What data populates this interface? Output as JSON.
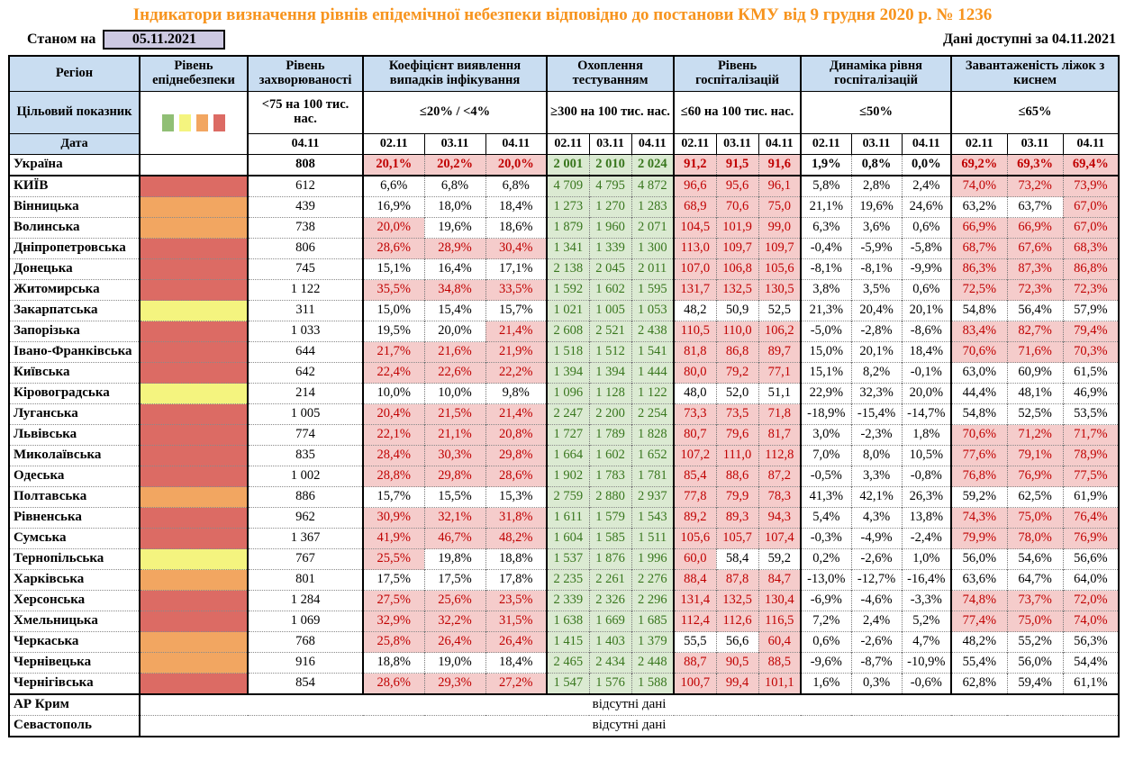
{
  "meta": {
    "title": "Індикатори визначення рівнів епідемічної небезпеки відповідно до постанови КМУ від 9 грудня 2020 р. № 1236",
    "as_of_label": "Станом на",
    "as_of_date": "05.11.2021",
    "available_label": "Дані доступні за",
    "available_date": "04.11.2021"
  },
  "colors": {
    "title_orange": "#f7941e",
    "header_blue": "#c9ddf1",
    "date_box_lavender": "#cdc9e2",
    "alert_bg_pink": "#f5cccb",
    "alert_text_red": "#c00000",
    "testing_bg_green": "#dbead2",
    "testing_text_green": "#38761d",
    "level_red": "#dc6b64",
    "level_orange": "#f2a661",
    "level_yellow": "#f4f47f",
    "legend_green": "#90bf75"
  },
  "legend": {
    "colors": [
      "#90bf75",
      "#f4f47f",
      "#f2a661",
      "#dc6b64"
    ]
  },
  "header": {
    "region_label": "Регіон",
    "target_label": "Цільовий показник",
    "date_label": "Дата",
    "groups": [
      {
        "title": "Рівень епіднебезпеки",
        "target": "",
        "dates": []
      },
      {
        "title": "Рівень захворюваності",
        "target": "<75 на 100 тис. нас.",
        "dates": [
          "04.11"
        ]
      },
      {
        "title": "Коефіцієнт виявлення випадків інфікування",
        "target": "≤20% / <4%",
        "dates": [
          "02.11",
          "03.11",
          "04.11"
        ]
      },
      {
        "title": "Охоплення тестуванням",
        "target": "≥300 на 100 тис. нас.",
        "dates": [
          "02.11",
          "03.11",
          "04.11"
        ]
      },
      {
        "title": "Рівень госпіталізацій",
        "target": "≤60 на 100 тис. нас.",
        "dates": [
          "02.11",
          "03.11",
          "04.11"
        ]
      },
      {
        "title": "Динаміка рівня госпіталізацій",
        "target": "≤50%",
        "dates": [
          "02.11",
          "03.11",
          "04.11"
        ]
      },
      {
        "title": "Завантаженість ліжок з киснем",
        "target": "≤65%",
        "dates": [
          "02.11",
          "03.11",
          "04.11"
        ]
      }
    ]
  },
  "rows": [
    {
      "n": "Україна",
      "lv": "none",
      "b": true,
      "inc": "808",
      "det": [
        "20,1%",
        "20,2%",
        "20,0%"
      ],
      "df": "aaa",
      "test": [
        "2 001",
        "2 010",
        "2 024"
      ],
      "hosp": [
        "91,2",
        "91,5",
        "91,6"
      ],
      "hf": "aaa",
      "dyn": [
        "1,9%",
        "0,8%",
        "0,0%"
      ],
      "beds": [
        "69,2%",
        "69,3%",
        "69,4%"
      ],
      "bf": "aaa",
      "sep": false
    },
    {
      "n": "КИЇВ",
      "lv": "red",
      "inc": "612",
      "det": [
        "6,6%",
        "6,8%",
        "6,8%"
      ],
      "df": "nnn",
      "test": [
        "4 709",
        "4 795",
        "4 872"
      ],
      "hosp": [
        "96,6",
        "95,6",
        "96,1"
      ],
      "hf": "aaa",
      "dyn": [
        "5,8%",
        "2,8%",
        "2,4%"
      ],
      "beds": [
        "74,0%",
        "73,2%",
        "73,9%"
      ],
      "bf": "aaa",
      "sep": true
    },
    {
      "n": "Вінницька",
      "lv": "orange",
      "inc": "439",
      "det": [
        "16,9%",
        "18,0%",
        "18,4%"
      ],
      "df": "nnn",
      "test": [
        "1 273",
        "1 270",
        "1 283"
      ],
      "hosp": [
        "68,9",
        "70,6",
        "75,0"
      ],
      "hf": "aaa",
      "dyn": [
        "21,1%",
        "19,6%",
        "24,6%"
      ],
      "beds": [
        "63,2%",
        "63,7%",
        "67,0%"
      ],
      "bf": "nna",
      "sep": false
    },
    {
      "n": "Волинська",
      "lv": "orange",
      "inc": "738",
      "det": [
        "20,0%",
        "19,6%",
        "18,6%"
      ],
      "df": "ann",
      "test": [
        "1 879",
        "1 960",
        "2 071"
      ],
      "hosp": [
        "104,5",
        "101,9",
        "99,0"
      ],
      "hf": "aaa",
      "dyn": [
        "6,3%",
        "3,6%",
        "0,6%"
      ],
      "beds": [
        "66,9%",
        "66,9%",
        "67,0%"
      ],
      "bf": "aaa",
      "sep": false
    },
    {
      "n": "Дніпропетровська",
      "lv": "red",
      "inc": "806",
      "det": [
        "28,6%",
        "28,9%",
        "30,4%"
      ],
      "df": "aaa",
      "test": [
        "1 341",
        "1 339",
        "1 300"
      ],
      "hosp": [
        "113,0",
        "109,7",
        "109,7"
      ],
      "hf": "aaa",
      "dyn": [
        "-0,4%",
        "-5,9%",
        "-5,8%"
      ],
      "beds": [
        "68,7%",
        "67,6%",
        "68,3%"
      ],
      "bf": "aaa",
      "sep": false
    },
    {
      "n": "Донецька",
      "lv": "red",
      "inc": "745",
      "det": [
        "15,1%",
        "16,4%",
        "17,1%"
      ],
      "df": "nnn",
      "test": [
        "2 138",
        "2 045",
        "2 011"
      ],
      "hosp": [
        "107,0",
        "106,8",
        "105,6"
      ],
      "hf": "aaa",
      "dyn": [
        "-8,1%",
        "-8,1%",
        "-9,9%"
      ],
      "beds": [
        "86,3%",
        "87,3%",
        "86,8%"
      ],
      "bf": "aaa",
      "sep": false
    },
    {
      "n": "Житомирська",
      "lv": "red",
      "inc": "1 122",
      "det": [
        "35,5%",
        "34,8%",
        "33,5%"
      ],
      "df": "aaa",
      "test": [
        "1 592",
        "1 602",
        "1 595"
      ],
      "hosp": [
        "131,7",
        "132,5",
        "130,5"
      ],
      "hf": "aaa",
      "dyn": [
        "3,8%",
        "3,5%",
        "0,6%"
      ],
      "beds": [
        "72,5%",
        "72,3%",
        "72,3%"
      ],
      "bf": "aaa",
      "sep": false
    },
    {
      "n": "Закарпатська",
      "lv": "yellow",
      "inc": "311",
      "det": [
        "15,0%",
        "15,4%",
        "15,7%"
      ],
      "df": "nnn",
      "test": [
        "1 021",
        "1 005",
        "1 053"
      ],
      "hosp": [
        "48,2",
        "50,9",
        "52,5"
      ],
      "hf": "nnn",
      "dyn": [
        "21,3%",
        "20,4%",
        "20,1%"
      ],
      "beds": [
        "54,8%",
        "56,4%",
        "57,9%"
      ],
      "bf": "nnn",
      "sep": false
    },
    {
      "n": "Запорізька",
      "lv": "red",
      "inc": "1 033",
      "det": [
        "19,5%",
        "20,0%",
        "21,4%"
      ],
      "df": "nna",
      "test": [
        "2 608",
        "2 521",
        "2 438"
      ],
      "hosp": [
        "110,5",
        "110,0",
        "106,2"
      ],
      "hf": "aaa",
      "dyn": [
        "-5,0%",
        "-2,8%",
        "-8,6%"
      ],
      "beds": [
        "83,4%",
        "82,7%",
        "79,4%"
      ],
      "bf": "aaa",
      "sep": false
    },
    {
      "n": "Івано-Франківська",
      "lv": "red",
      "inc": "644",
      "det": [
        "21,7%",
        "21,6%",
        "21,9%"
      ],
      "df": "aaa",
      "test": [
        "1 518",
        "1 512",
        "1 541"
      ],
      "hosp": [
        "81,8",
        "86,8",
        "89,7"
      ],
      "hf": "aaa",
      "dyn": [
        "15,0%",
        "20,1%",
        "18,4%"
      ],
      "beds": [
        "70,6%",
        "71,6%",
        "70,3%"
      ],
      "bf": "aaa",
      "sep": false
    },
    {
      "n": "Київська",
      "lv": "red",
      "inc": "642",
      "det": [
        "22,4%",
        "22,6%",
        "22,2%"
      ],
      "df": "aaa",
      "test": [
        "1 394",
        "1 394",
        "1 444"
      ],
      "hosp": [
        "80,0",
        "79,2",
        "77,1"
      ],
      "hf": "aaa",
      "dyn": [
        "15,1%",
        "8,2%",
        "-0,1%"
      ],
      "beds": [
        "63,0%",
        "60,9%",
        "61,5%"
      ],
      "bf": "nnn",
      "sep": false
    },
    {
      "n": "Кіровоградська",
      "lv": "yellow",
      "inc": "214",
      "det": [
        "10,0%",
        "10,0%",
        "9,8%"
      ],
      "df": "nnn",
      "test": [
        "1 096",
        "1 128",
        "1 122"
      ],
      "hosp": [
        "48,0",
        "52,0",
        "51,1"
      ],
      "hf": "nnn",
      "dyn": [
        "22,9%",
        "32,3%",
        "20,0%"
      ],
      "beds": [
        "44,4%",
        "48,1%",
        "46,9%"
      ],
      "bf": "nnn",
      "sep": false
    },
    {
      "n": "Луганська",
      "lv": "red",
      "inc": "1 005",
      "det": [
        "20,4%",
        "21,5%",
        "21,4%"
      ],
      "df": "aaa",
      "test": [
        "2 247",
        "2 200",
        "2 254"
      ],
      "hosp": [
        "73,3",
        "73,5",
        "71,8"
      ],
      "hf": "aaa",
      "dyn": [
        "-18,9%",
        "-15,4%",
        "-14,7%"
      ],
      "beds": [
        "54,8%",
        "52,5%",
        "53,5%"
      ],
      "bf": "nnn",
      "sep": false
    },
    {
      "n": "Львівська",
      "lv": "red",
      "inc": "774",
      "det": [
        "22,1%",
        "21,1%",
        "20,8%"
      ],
      "df": "aaa",
      "test": [
        "1 727",
        "1 789",
        "1 828"
      ],
      "hosp": [
        "80,7",
        "79,6",
        "81,7"
      ],
      "hf": "aaa",
      "dyn": [
        "3,0%",
        "-2,3%",
        "1,8%"
      ],
      "beds": [
        "70,6%",
        "71,2%",
        "71,7%"
      ],
      "bf": "aaa",
      "sep": false
    },
    {
      "n": "Миколаївська",
      "lv": "red",
      "inc": "835",
      "det": [
        "28,4%",
        "30,3%",
        "29,8%"
      ],
      "df": "aaa",
      "test": [
        "1 664",
        "1 602",
        "1 652"
      ],
      "hosp": [
        "107,2",
        "111,0",
        "112,8"
      ],
      "hf": "aaa",
      "dyn": [
        "7,0%",
        "8,0%",
        "10,5%"
      ],
      "beds": [
        "77,6%",
        "79,1%",
        "78,9%"
      ],
      "bf": "aaa",
      "sep": false
    },
    {
      "n": "Одеська",
      "lv": "red",
      "inc": "1 002",
      "det": [
        "28,8%",
        "29,8%",
        "28,6%"
      ],
      "df": "aaa",
      "test": [
        "1 902",
        "1 783",
        "1 781"
      ],
      "hosp": [
        "85,4",
        "88,6",
        "87,2"
      ],
      "hf": "aaa",
      "dyn": [
        "-0,5%",
        "3,3%",
        "-0,8%"
      ],
      "beds": [
        "76,8%",
        "76,9%",
        "77,5%"
      ],
      "bf": "aaa",
      "sep": false
    },
    {
      "n": "Полтавська",
      "lv": "orange",
      "inc": "886",
      "det": [
        "15,7%",
        "15,5%",
        "15,3%"
      ],
      "df": "nnn",
      "test": [
        "2 759",
        "2 880",
        "2 937"
      ],
      "hosp": [
        "77,8",
        "79,9",
        "78,3"
      ],
      "hf": "aaa",
      "dyn": [
        "41,3%",
        "42,1%",
        "26,3%"
      ],
      "beds": [
        "59,2%",
        "62,5%",
        "61,9%"
      ],
      "bf": "nnn",
      "sep": false
    },
    {
      "n": "Рівненська",
      "lv": "red",
      "inc": "962",
      "det": [
        "30,9%",
        "32,1%",
        "31,8%"
      ],
      "df": "aaa",
      "test": [
        "1 611",
        "1 579",
        "1 543"
      ],
      "hosp": [
        "89,2",
        "89,3",
        "94,3"
      ],
      "hf": "aaa",
      "dyn": [
        "5,4%",
        "4,3%",
        "13,8%"
      ],
      "beds": [
        "74,3%",
        "75,0%",
        "76,4%"
      ],
      "bf": "aaa",
      "sep": false
    },
    {
      "n": "Сумська",
      "lv": "red",
      "inc": "1 367",
      "det": [
        "41,9%",
        "46,7%",
        "48,2%"
      ],
      "df": "aaa",
      "test": [
        "1 604",
        "1 585",
        "1 511"
      ],
      "hosp": [
        "105,6",
        "105,7",
        "107,4"
      ],
      "hf": "aaa",
      "dyn": [
        "-0,3%",
        "-4,9%",
        "-2,4%"
      ],
      "beds": [
        "79,9%",
        "78,0%",
        "76,9%"
      ],
      "bf": "aaa",
      "sep": false
    },
    {
      "n": "Тернопільська",
      "lv": "yellow",
      "inc": "767",
      "det": [
        "25,5%",
        "19,8%",
        "18,8%"
      ],
      "df": "ann",
      "test": [
        "1 537",
        "1 876",
        "1 996"
      ],
      "hosp": [
        "60,0",
        "58,4",
        "59,2"
      ],
      "hf": "ann",
      "dyn": [
        "0,2%",
        "-2,6%",
        "1,0%"
      ],
      "beds": [
        "56,0%",
        "54,6%",
        "56,6%"
      ],
      "bf": "nnn",
      "sep": false
    },
    {
      "n": "Харківська",
      "lv": "orange",
      "inc": "801",
      "det": [
        "17,5%",
        "17,5%",
        "17,8%"
      ],
      "df": "nnn",
      "test": [
        "2 235",
        "2 261",
        "2 276"
      ],
      "hosp": [
        "88,4",
        "87,8",
        "84,7"
      ],
      "hf": "aaa",
      "dyn": [
        "-13,0%",
        "-12,7%",
        "-16,4%"
      ],
      "beds": [
        "63,6%",
        "64,7%",
        "64,0%"
      ],
      "bf": "nnn",
      "sep": false
    },
    {
      "n": "Херсонська",
      "lv": "red",
      "inc": "1 284",
      "det": [
        "27,5%",
        "25,6%",
        "23,5%"
      ],
      "df": "aaa",
      "test": [
        "2 339",
        "2 326",
        "2 296"
      ],
      "hosp": [
        "131,4",
        "132,5",
        "130,4"
      ],
      "hf": "aaa",
      "dyn": [
        "-6,9%",
        "-4,6%",
        "-3,3%"
      ],
      "beds": [
        "74,8%",
        "73,7%",
        "72,0%"
      ],
      "bf": "aaa",
      "sep": false
    },
    {
      "n": "Хмельницька",
      "lv": "red",
      "inc": "1 069",
      "det": [
        "32,9%",
        "32,2%",
        "31,5%"
      ],
      "df": "aaa",
      "test": [
        "1 638",
        "1 669",
        "1 685"
      ],
      "hosp": [
        "112,4",
        "112,6",
        "116,5"
      ],
      "hf": "aaa",
      "dyn": [
        "7,2%",
        "2,4%",
        "5,2%"
      ],
      "beds": [
        "77,4%",
        "75,0%",
        "74,0%"
      ],
      "bf": "aaa",
      "sep": false
    },
    {
      "n": "Черкаська",
      "lv": "orange",
      "inc": "768",
      "det": [
        "25,8%",
        "26,4%",
        "26,4%"
      ],
      "df": "aaa",
      "test": [
        "1 415",
        "1 403",
        "1 379"
      ],
      "hosp": [
        "55,5",
        "56,6",
        "60,4"
      ],
      "hf": "nna",
      "dyn": [
        "0,6%",
        "-2,6%",
        "4,7%"
      ],
      "beds": [
        "48,2%",
        "55,2%",
        "56,3%"
      ],
      "bf": "nnn",
      "sep": false
    },
    {
      "n": "Чернівецька",
      "lv": "orange",
      "inc": "916",
      "det": [
        "18,8%",
        "19,0%",
        "18,4%"
      ],
      "df": "nnn",
      "test": [
        "2 465",
        "2 434",
        "2 448"
      ],
      "hosp": [
        "88,7",
        "90,5",
        "88,5"
      ],
      "hf": "aaa",
      "dyn": [
        "-9,6%",
        "-8,7%",
        "-10,9%"
      ],
      "beds": [
        "55,4%",
        "56,0%",
        "54,4%"
      ],
      "bf": "nnn",
      "sep": false
    },
    {
      "n": "Чернігівська",
      "lv": "red",
      "inc": "854",
      "det": [
        "28,6%",
        "29,3%",
        "27,2%"
      ],
      "df": "aaa",
      "test": [
        "1 547",
        "1 576",
        "1 588"
      ],
      "hosp": [
        "100,7",
        "99,4",
        "101,1"
      ],
      "hf": "aaa",
      "dyn": [
        "1,6%",
        "0,3%",
        "-0,6%"
      ],
      "beds": [
        "62,8%",
        "59,4%",
        "61,1%"
      ],
      "bf": "nnn",
      "sep": false
    }
  ],
  "no_data_rows": [
    {
      "n": "АР Крим",
      "text": "відсутні дані",
      "sep": true
    },
    {
      "n": "Севастополь",
      "text": "відсутні дані",
      "sep": false
    }
  ]
}
